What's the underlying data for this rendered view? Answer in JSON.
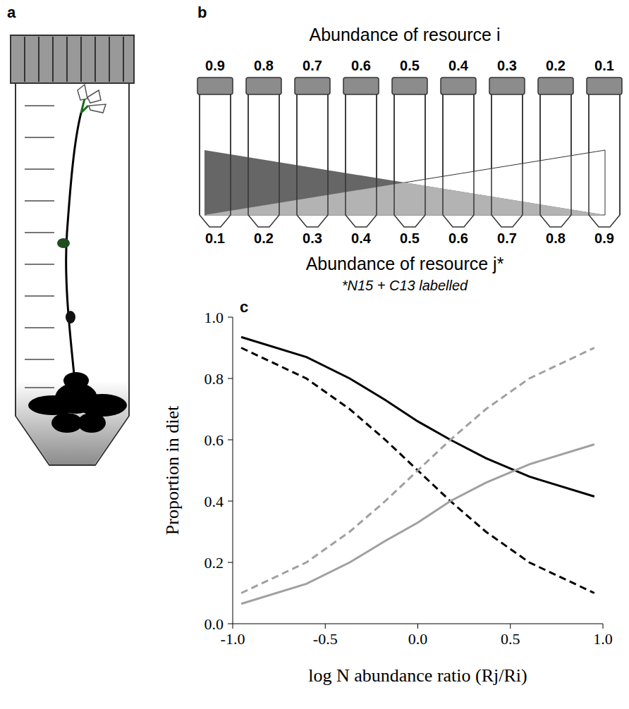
{
  "panel_labels": [
    "a",
    "b",
    "c"
  ],
  "diagram": {
    "top_title": "Abundance of resource i",
    "top_values": [
      0.9,
      0.8,
      0.7,
      0.6,
      0.5,
      0.4,
      0.3,
      0.2,
      0.1
    ],
    "bottom_values": [
      0.1,
      0.2,
      0.3,
      0.4,
      0.5,
      0.6,
      0.7,
      0.8,
      0.9
    ],
    "bottom_title": "Abundance of resource j*",
    "bottom_note": "*N15 + C13 labelled"
  },
  "chart_data": {
    "type": "line",
    "x_label": "log N abundance ratio (Rj/Ri)",
    "y_label": "Proportion in diet",
    "x": [
      -0.954,
      -0.602,
      -0.368,
      -0.176,
      0,
      0.176,
      0.368,
      0.602,
      0.954
    ],
    "series": [
      {
        "color": "#000000",
        "line_style": "solid",
        "values": [
          0.935,
          0.87,
          0.8,
          0.73,
          0.66,
          0.6,
          0.54,
          0.48,
          0.415
        ]
      },
      {
        "color": "#000000",
        "line_style": "dashed",
        "values": [
          0.9,
          0.8,
          0.7,
          0.6,
          0.5,
          0.4,
          0.3,
          0.2,
          0.1
        ]
      },
      {
        "color": "#a0a0a0",
        "line_style": "solid",
        "values": [
          0.065,
          0.13,
          0.2,
          0.27,
          0.33,
          0.4,
          0.46,
          0.52,
          0.585
        ]
      },
      {
        "color": "#a0a0a0",
        "line_style": "dashed",
        "values": [
          0.1,
          0.2,
          0.3,
          0.4,
          0.5,
          0.6,
          0.7,
          0.8,
          0.9
        ]
      }
    ],
    "xlim": [
      -1,
      1
    ],
    "xticks": [
      {
        "value": -1,
        "label": "-1.0"
      },
      {
        "value": -0.5,
        "label": "-0.5"
      },
      {
        "value": 0,
        "label": "0.0"
      },
      {
        "value": 0.5,
        "label": "0.5"
      },
      {
        "value": 1,
        "label": "1.0"
      }
    ],
    "ylim": [
      0,
      1
    ],
    "yticks": [
      {
        "value": 0,
        "label": "0.0"
      },
      {
        "value": 0.2,
        "label": "0.2"
      },
      {
        "value": 0.4,
        "label": "0.4"
      },
      {
        "value": 0.6,
        "label": "0.6"
      },
      {
        "value": 0.8,
        "label": "0.8"
      },
      {
        "value": 1,
        "label": "1.0"
      }
    ],
    "grid": false
  }
}
